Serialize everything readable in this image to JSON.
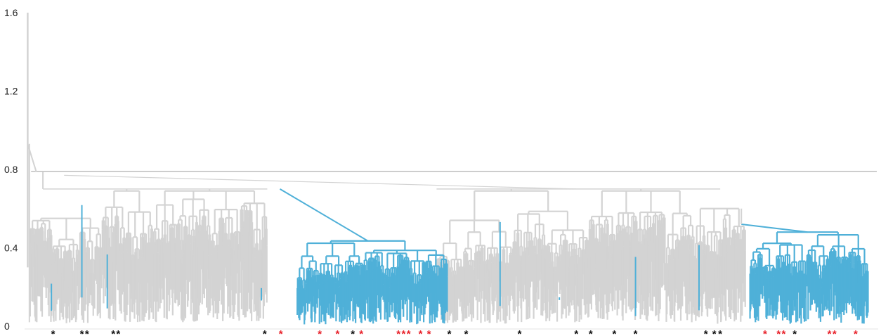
{
  "chart_data": {
    "type": "dendrogram",
    "title": "",
    "xlabel": "",
    "ylabel": "",
    "ylim": [
      0,
      1.6
    ],
    "y_ticks": [
      {
        "value": 0,
        "label": "0"
      },
      {
        "value": 0.4,
        "label": "0.4"
      },
      {
        "value": 0.8,
        "label": "0.8"
      },
      {
        "value": 1.2,
        "label": "1.2"
      },
      {
        "value": 1.6,
        "label": "1.6"
      }
    ],
    "grid": false,
    "leaf_index_range": [
      0,
      1000
    ],
    "colors": {
      "default_branch": "#d3d3d3",
      "highlighted_branch": "#4fb0d8",
      "top_link": "#bdbdbd",
      "marker_black": "#111111",
      "marker_red": "#e8212a"
    },
    "root_height": 1.6,
    "merge_levels": [
      {
        "height": 0.93,
        "description": "first split of outlier leaf"
      },
      {
        "height": 0.79,
        "description": "top-level join of main branches"
      },
      {
        "height": 0.7,
        "description": "second-level joins"
      }
    ],
    "highlighted_clusters": [
      {
        "leaf_start": 320,
        "leaf_end": 498,
        "merge_height": 0.435,
        "joins_at": 0.7
      },
      {
        "leaf_start": 855,
        "leaf_end": 995,
        "merge_height": 0.48,
        "joins_at": 0.52
      }
    ],
    "markers": [
      {
        "leaf": 32,
        "color": "black"
      },
      {
        "leaf": 66,
        "color": "black"
      },
      {
        "leaf": 72,
        "color": "black"
      },
      {
        "leaf": 103,
        "color": "black"
      },
      {
        "leaf": 109,
        "color": "black"
      },
      {
        "leaf": 282,
        "color": "black"
      },
      {
        "leaf": 301,
        "color": "red"
      },
      {
        "leaf": 347,
        "color": "red"
      },
      {
        "leaf": 368,
        "color": "red"
      },
      {
        "leaf": 386,
        "color": "black"
      },
      {
        "leaf": 396,
        "color": "red"
      },
      {
        "leaf": 440,
        "color": "red"
      },
      {
        "leaf": 446,
        "color": "red"
      },
      {
        "leaf": 452,
        "color": "red"
      },
      {
        "leaf": 466,
        "color": "red"
      },
      {
        "leaf": 476,
        "color": "red"
      },
      {
        "leaf": 500,
        "color": "black"
      },
      {
        "leaf": 520,
        "color": "black"
      },
      {
        "leaf": 583,
        "color": "black"
      },
      {
        "leaf": 650,
        "color": "black"
      },
      {
        "leaf": 667,
        "color": "black"
      },
      {
        "leaf": 695,
        "color": "black"
      },
      {
        "leaf": 720,
        "color": "black"
      },
      {
        "leaf": 803,
        "color": "black"
      },
      {
        "leaf": 813,
        "color": "black"
      },
      {
        "leaf": 820,
        "color": "black"
      },
      {
        "leaf": 873,
        "color": "red"
      },
      {
        "leaf": 889,
        "color": "red"
      },
      {
        "leaf": 895,
        "color": "red"
      },
      {
        "leaf": 908,
        "color": "black"
      },
      {
        "leaf": 949,
        "color": "red"
      },
      {
        "leaf": 955,
        "color": "red"
      },
      {
        "leaf": 980,
        "color": "red"
      }
    ]
  }
}
